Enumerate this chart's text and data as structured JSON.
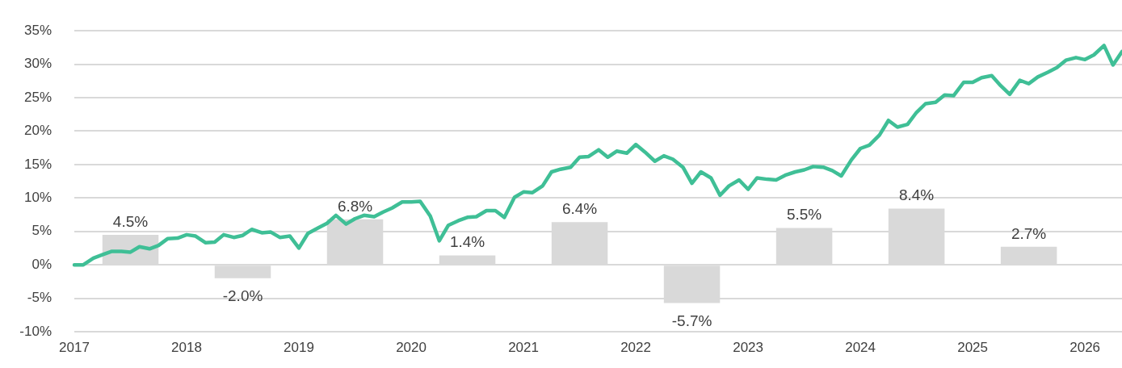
{
  "chart_data": {
    "type": "line",
    "xlim": [
      2017,
      2026.33
    ],
    "xticks": [
      2017,
      2018,
      2019,
      2020,
      2021,
      2022,
      2023,
      2024,
      2025,
      2026
    ],
    "ylim": [
      -10,
      35
    ],
    "yticks": [
      {
        "value": -10,
        "label": "-10%"
      },
      {
        "value": -5,
        "label": "-5%"
      },
      {
        "value": 0,
        "label": "0%"
      },
      {
        "value": 5,
        "label": "5%"
      },
      {
        "value": 10,
        "label": "10%"
      },
      {
        "value": 15,
        "label": "15%"
      },
      {
        "value": 20,
        "label": "20%"
      },
      {
        "value": 25,
        "label": "25%"
      },
      {
        "value": 30,
        "label": "30%"
      },
      {
        "value": 35,
        "label": "35%"
      }
    ],
    "grid": "y",
    "legend": false,
    "marker": "none",
    "line_style": "solid",
    "series": [
      {
        "type": "bar",
        "color": "#d9d9d9",
        "x": [
          2017.5,
          2018.5,
          2019.5,
          2020.5,
          2021.5,
          2022.5,
          2023.5,
          2024.5,
          2025.5
        ],
        "values": [
          4.5,
          -2.0,
          6.8,
          1.4,
          6.4,
          -5.7,
          5.5,
          8.4,
          2.7
        ],
        "value_labels": [
          "4.5%",
          "-2.0%",
          "6.8%",
          "1.4%",
          "6.4%",
          "-5.7%",
          "5.5%",
          "8.4%",
          "2.7%"
        ]
      },
      {
        "color": "#3fbf96",
        "x": [
          2017.0,
          2017.08,
          2017.17,
          2017.25,
          2017.33,
          2017.42,
          2017.5,
          2017.58,
          2017.67,
          2017.75,
          2017.83,
          2017.92,
          2018.0,
          2018.08,
          2018.17,
          2018.25,
          2018.33,
          2018.42,
          2018.5,
          2018.58,
          2018.67,
          2018.75,
          2018.83,
          2018.92,
          2019.0,
          2019.08,
          2019.17,
          2019.25,
          2019.33,
          2019.42,
          2019.5,
          2019.58,
          2019.67,
          2019.75,
          2019.83,
          2019.92,
          2020.0,
          2020.08,
          2020.17,
          2020.25,
          2020.33,
          2020.42,
          2020.5,
          2020.58,
          2020.67,
          2020.75,
          2020.83,
          2020.92,
          2021.0,
          2021.08,
          2021.17,
          2021.25,
          2021.33,
          2021.42,
          2021.5,
          2021.58,
          2021.67,
          2021.75,
          2021.83,
          2021.92,
          2022.0,
          2022.08,
          2022.17,
          2022.25,
          2022.33,
          2022.42,
          2022.5,
          2022.58,
          2022.67,
          2022.75,
          2022.83,
          2022.92,
          2023.0,
          2023.08,
          2023.17,
          2023.25,
          2023.33,
          2023.42,
          2023.5,
          2023.58,
          2023.67,
          2023.75,
          2023.83,
          2023.92,
          2024.0,
          2024.08,
          2024.17,
          2024.25,
          2024.33,
          2024.42,
          2024.5,
          2024.58,
          2024.67,
          2024.75,
          2024.83,
          2024.92,
          2025.0,
          2025.08,
          2025.17,
          2025.25,
          2025.33,
          2025.42,
          2025.5,
          2025.58,
          2025.67,
          2025.75,
          2025.83,
          2025.92,
          2026.0,
          2026.08,
          2026.17,
          2026.25,
          2026.33
        ],
        "values": [
          0,
          0,
          1.0,
          1.5,
          2.0,
          2.0,
          1.9,
          2.7,
          2.4,
          2.9,
          3.9,
          4.0,
          4.5,
          4.3,
          3.3,
          3.4,
          4.5,
          4.1,
          4.4,
          5.3,
          4.8,
          4.9,
          4.1,
          4.3,
          2.5,
          4.7,
          5.5,
          6.2,
          7.4,
          6.1,
          6.9,
          7.4,
          7.2,
          7.9,
          8.5,
          9.4,
          9.4,
          9.5,
          7.3,
          3.6,
          5.9,
          6.6,
          7.1,
          7.2,
          8.1,
          8.1,
          7.1,
          10.1,
          10.9,
          10.8,
          11.8,
          13.9,
          14.3,
          14.6,
          16.1,
          16.2,
          17.2,
          16.1,
          17.0,
          16.7,
          18.0,
          16.9,
          15.5,
          16.3,
          15.8,
          14.6,
          12.2,
          13.9,
          13.0,
          10.4,
          11.8,
          12.7,
          11.3,
          13.0,
          12.8,
          12.7,
          13.4,
          13.9,
          14.2,
          14.7,
          14.6,
          14.1,
          13.3,
          15.7,
          17.4,
          17.9,
          19.4,
          21.6,
          20.6,
          21.0,
          22.8,
          24.1,
          24.3,
          25.4,
          25.3,
          27.3,
          27.3,
          28.0,
          28.3,
          26.8,
          25.5,
          27.6,
          27.1,
          28.1,
          28.8,
          29.5,
          30.6,
          31.0,
          30.7,
          31.4,
          32.8,
          29.9,
          31.9
        ]
      }
    ]
  }
}
